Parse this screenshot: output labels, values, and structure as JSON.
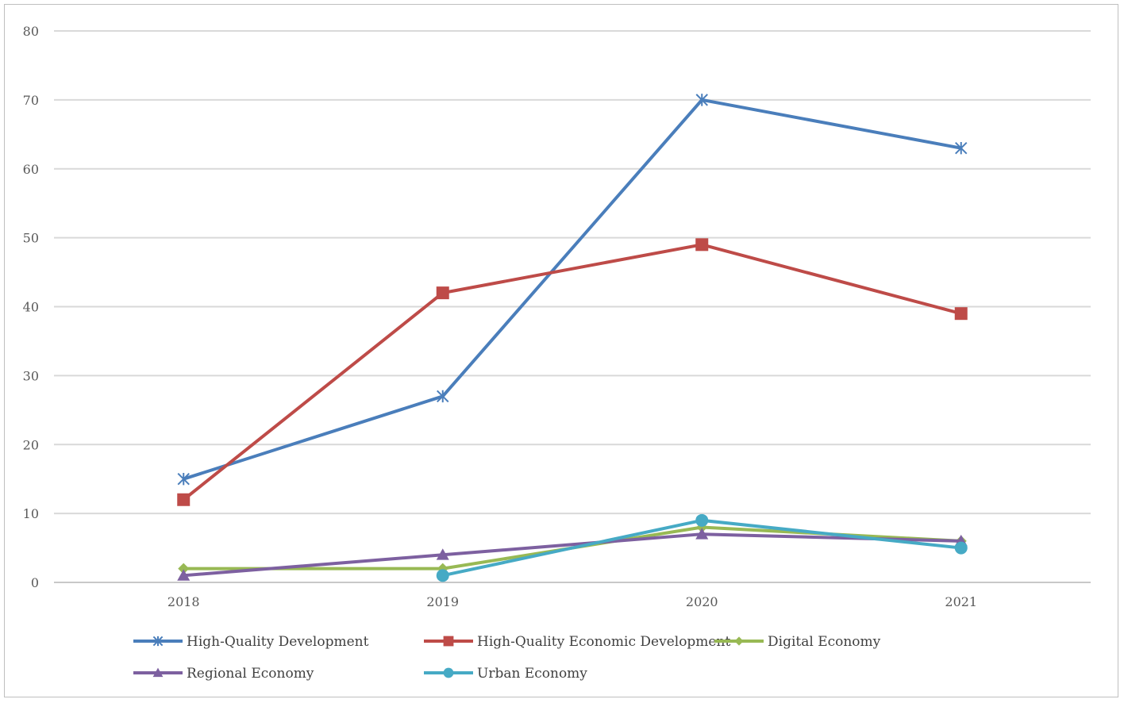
{
  "chart_data": {
    "type": "line",
    "title": "",
    "xlabel": "",
    "ylabel": "",
    "x": [
      "2018",
      "2019",
      "2020",
      "2021"
    ],
    "ylim": [
      0,
      80
    ],
    "yticks": [
      0,
      10,
      20,
      30,
      40,
      50,
      60,
      70,
      80
    ],
    "grid": "horizontal",
    "legend_position": "bottom",
    "series": [
      {
        "name": "High-Quality Development",
        "color": "#4a7ebb",
        "marker": "asterisk",
        "values": [
          15,
          27,
          70,
          63
        ]
      },
      {
        "name": "High-Quality Economic Development",
        "color": "#be4b48",
        "marker": "square",
        "values": [
          12,
          42,
          49,
          39
        ]
      },
      {
        "name": "Digital Economy",
        "color": "#98b954",
        "marker": "diamond",
        "values": [
          2,
          2,
          8,
          6
        ]
      },
      {
        "name": "Regional Economy",
        "color": "#7d60a0",
        "marker": "triangle",
        "values": [
          1,
          4,
          7,
          6
        ]
      },
      {
        "name": "Urban Economy",
        "color": "#46aac5",
        "marker": "circle",
        "values": [
          null,
          1,
          9,
          5
        ]
      }
    ]
  }
}
